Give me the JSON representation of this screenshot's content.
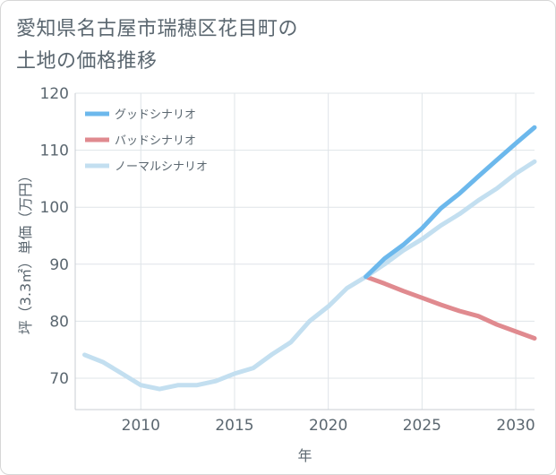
{
  "title_line1": "愛知県名古屋市瑞穂区花目町の",
  "title_line2": "土地の価格推移",
  "chart_data": {
    "type": "line",
    "title": "愛知県名古屋市瑞穂区花目町の土地の価格推移",
    "xlabel": "年",
    "ylabel": "坪（3.3㎡）単価（万円）",
    "xlim": [
      2006.5,
      2031
    ],
    "ylim": [
      64.5,
      120
    ],
    "xticks": [
      2010,
      2015,
      2020,
      2025,
      2030
    ],
    "yticks": [
      70,
      80,
      90,
      100,
      110,
      120
    ],
    "grid": true,
    "legend_position": "top-left",
    "series": [
      {
        "name": "グッドシナリオ",
        "color": "#6cb8ec",
        "x": [
          2022,
          2023,
          2024,
          2025,
          2026,
          2027,
          2028,
          2029,
          2030,
          2031
        ],
        "values": [
          87.8,
          91.0,
          93.4,
          96.3,
          99.8,
          102.4,
          105.4,
          108.3,
          111.2,
          114.0
        ]
      },
      {
        "name": "バッドシナリオ",
        "color": "#e08a8f",
        "x": [
          2022,
          2023,
          2024,
          2025,
          2026,
          2027,
          2028,
          2029,
          2030,
          2031
        ],
        "values": [
          87.8,
          86.6,
          85.3,
          84.1,
          82.9,
          81.8,
          80.9,
          79.4,
          78.2,
          77.0
        ]
      },
      {
        "name": "ノーマルシナリオ",
        "color": "#c3dff0",
        "x": [
          2007,
          2008,
          2009,
          2010,
          2011,
          2012,
          2013,
          2014,
          2015,
          2016,
          2017,
          2018,
          2019,
          2020,
          2021,
          2022,
          2023,
          2024,
          2025,
          2026,
          2027,
          2028,
          2029,
          2030,
          2031
        ],
        "values": [
          74.1,
          72.8,
          70.8,
          68.8,
          68.1,
          68.8,
          68.8,
          69.5,
          70.8,
          71.8,
          74.2,
          76.3,
          80.0,
          82.6,
          85.8,
          87.8,
          90.0,
          92.4,
          94.4,
          96.8,
          98.8,
          101.2,
          103.3,
          105.9,
          108.0
        ]
      }
    ]
  }
}
